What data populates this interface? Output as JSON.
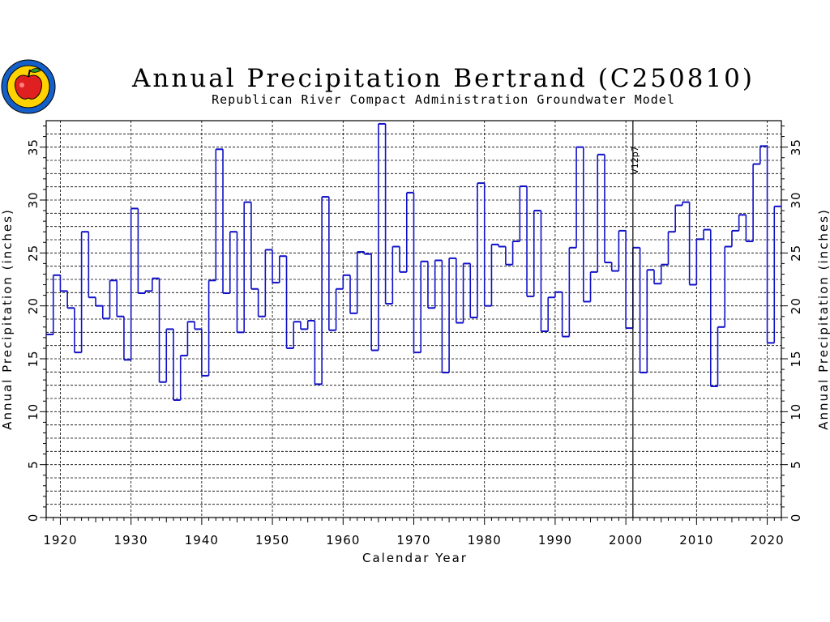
{
  "colors": {
    "series": "#1010c8",
    "grid": "#000000",
    "logo_ring": "#1560c8",
    "logo_fill": "#ffd200",
    "apple": "#e02020"
  },
  "icons": {
    "logo": "apple-seal-logo-icon"
  },
  "chart_data": {
    "type": "step",
    "title": "Annual Precipitation Bertrand (C250810)",
    "subtitle": "Republican River Compact Administration Groundwater Model",
    "xlabel": "Calendar Year",
    "ylabel_left": "Annual Precipitation (inches)",
    "ylabel_right": "Annual Precipitation (inches)",
    "xlim": [
      1918,
      2022
    ],
    "ylim": [
      0,
      37.5
    ],
    "x_ticks": [
      1920,
      1930,
      1940,
      1950,
      1960,
      1970,
      1980,
      1990,
      2000,
      2010,
      2020
    ],
    "y_ticks": [
      0,
      5,
      10,
      15,
      20,
      25,
      30,
      35
    ],
    "grid": true,
    "annotation": {
      "text": "V12p7",
      "x": 2001
    },
    "series": [
      {
        "x": [
          1918,
          1919,
          1920,
          1921,
          1922,
          1923,
          1924,
          1925,
          1926,
          1927,
          1928,
          1929,
          1930,
          1931,
          1932,
          1933,
          1934,
          1935,
          1936,
          1937,
          1938,
          1939,
          1940,
          1941,
          1942,
          1943,
          1944,
          1945,
          1946,
          1947,
          1948,
          1949,
          1950,
          1951,
          1952,
          1953,
          1954,
          1955,
          1956,
          1957,
          1958,
          1959,
          1960,
          1961,
          1962,
          1963,
          1964,
          1965,
          1966,
          1967,
          1968,
          1969,
          1970,
          1971,
          1972,
          1973,
          1974,
          1975,
          1976,
          1977,
          1978,
          1979,
          1980,
          1981,
          1982,
          1983,
          1984,
          1985,
          1986,
          1987,
          1988,
          1989,
          1990,
          1991,
          1992,
          1993,
          1994,
          1995,
          1996,
          1997,
          1998,
          1999,
          2000,
          2001,
          2002,
          2003,
          2004,
          2005,
          2006,
          2007,
          2008,
          2009,
          2010,
          2011,
          2012,
          2013,
          2014,
          2015,
          2016,
          2017,
          2018,
          2019,
          2020,
          2021
        ],
        "values": [
          17.3,
          22.9,
          21.4,
          19.8,
          15.6,
          27.0,
          20.8,
          20.0,
          18.8,
          22.4,
          19.0,
          14.9,
          29.2,
          21.2,
          21.4,
          22.6,
          12.8,
          17.8,
          11.1,
          15.3,
          18.5,
          17.8,
          13.4,
          22.4,
          34.8,
          21.2,
          27.0,
          17.5,
          29.8,
          21.6,
          19.0,
          25.3,
          22.2,
          24.7,
          16.0,
          18.5,
          17.8,
          18.6,
          12.6,
          30.3,
          17.7,
          21.6,
          22.9,
          19.3,
          25.1,
          24.9,
          15.8,
          37.2,
          20.2,
          25.6,
          23.2,
          30.7,
          15.6,
          24.2,
          19.8,
          24.3,
          13.7,
          24.5,
          18.4,
          24.0,
          18.9,
          31.6,
          20.0,
          25.8,
          25.6,
          23.9,
          26.1,
          31.3,
          20.9,
          29.0,
          17.6,
          20.8,
          21.3,
          17.1,
          25.5,
          35.0,
          20.4,
          23.2,
          34.3,
          24.1,
          23.3,
          27.1,
          17.9,
          25.5,
          13.7,
          23.4,
          22.1,
          23.9,
          27.0,
          29.5,
          29.8,
          22.0,
          26.3,
          27.2,
          12.4,
          18.0,
          25.6,
          27.1,
          28.6,
          26.1,
          33.4,
          35.1,
          16.5,
          29.4
        ]
      }
    ]
  }
}
